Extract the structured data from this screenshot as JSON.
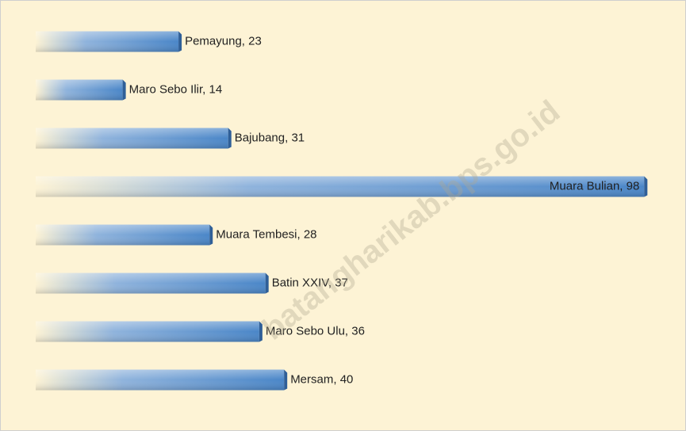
{
  "chart_data": {
    "type": "bar",
    "orientation": "horizontal",
    "categories": [
      "Pemayung",
      "Maro Sebo Ilir",
      "Bajubang",
      "Muara Bulian",
      "Muara Tembesi",
      "Batin XXIV",
      "Maro Sebo Ulu",
      "Mersam"
    ],
    "values": [
      23,
      14,
      31,
      98,
      28,
      37,
      36,
      40
    ],
    "value_labels": [
      "Pemayung, 23",
      "Maro Sebo Ilir, 14",
      "Bajubang, 31",
      "Muara Bulian, 98",
      "Muara Tembesi, 28",
      "Batin XXIV, 37",
      "Maro Sebo Ulu, 36",
      "Mersam, 40"
    ],
    "color": "#4a86c8",
    "xlim": [
      0,
      100
    ],
    "watermark": "batangharikab.bps.go.id"
  }
}
